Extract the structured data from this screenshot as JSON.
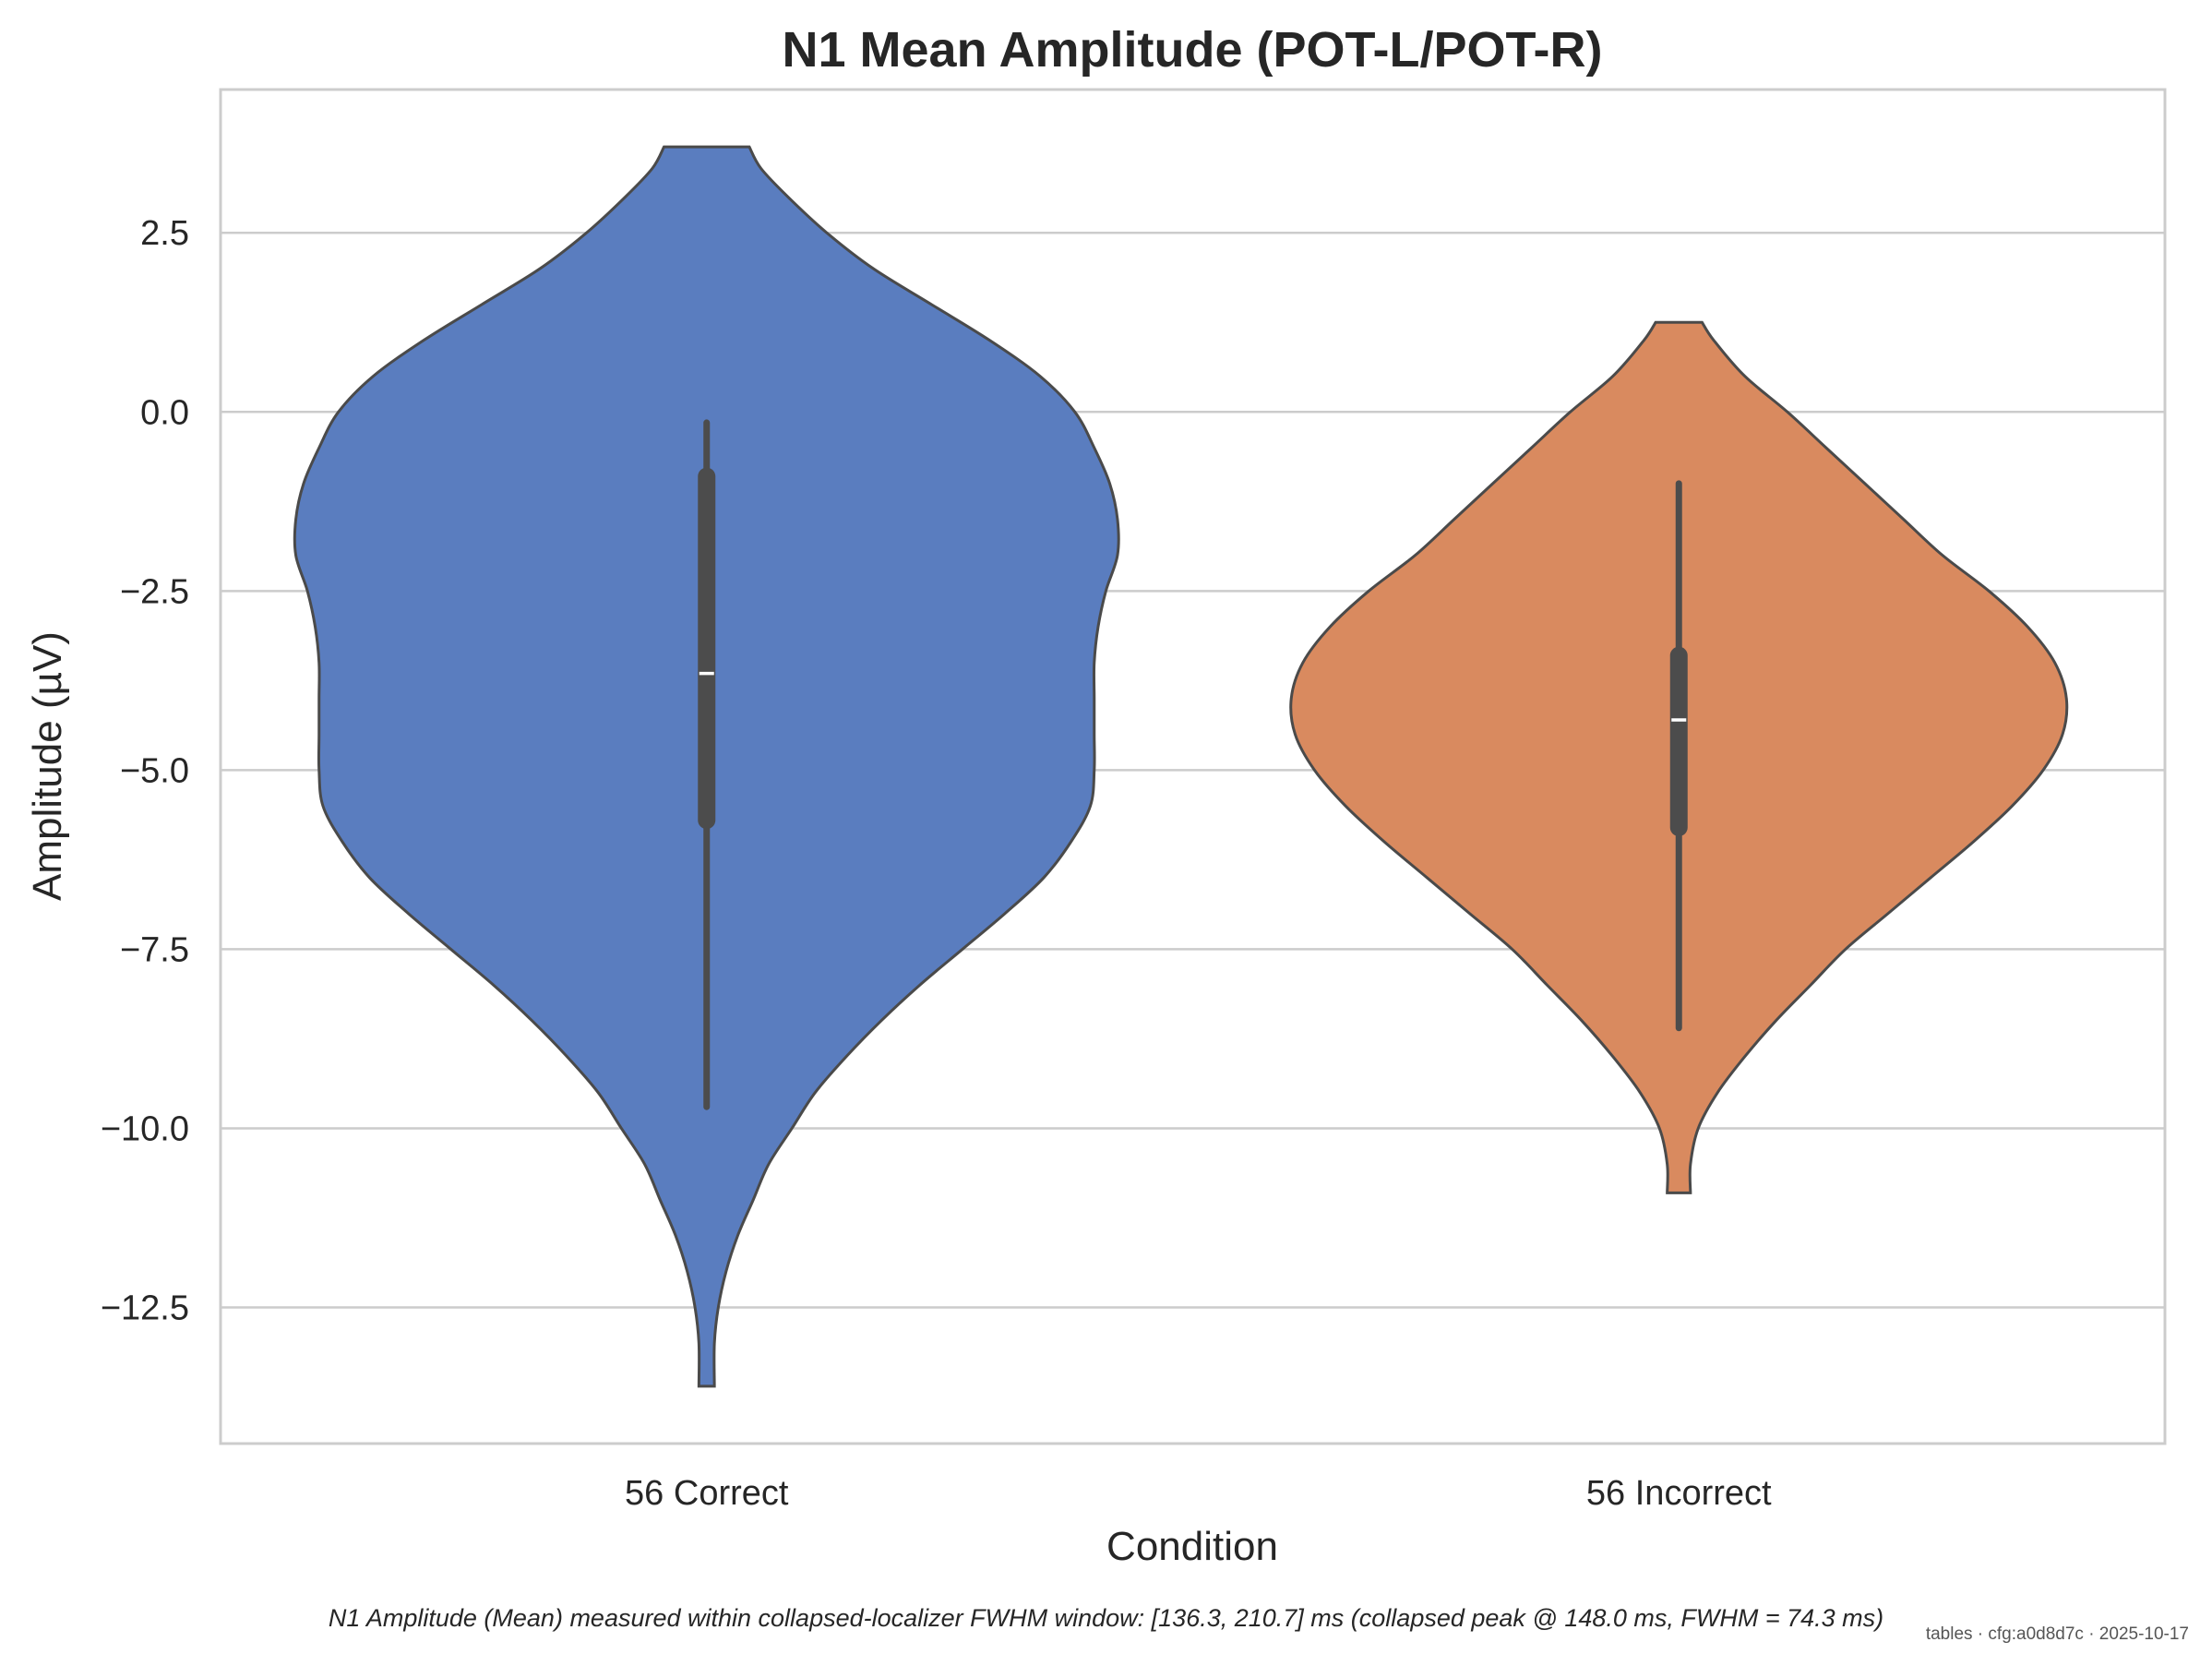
{
  "chart_data": {
    "type": "violin",
    "title": "N1 Mean Amplitude (POT-L/POT-R)",
    "xlabel": "Condition",
    "ylabel": "Amplitude (µV)",
    "ylim": [
      -14.4,
      4.5
    ],
    "yticks": [
      2.5,
      0.0,
      -2.5,
      -5.0,
      -7.5,
      -10.0,
      -12.5
    ],
    "ytick_labels": [
      "2.5",
      "0.0",
      "−2.5",
      "−5.0",
      "−7.5",
      "−10.0",
      "−12.5"
    ],
    "grid": "horizontal",
    "categories": [
      "56 Correct",
      "56 Incorrect"
    ],
    "series": [
      {
        "category": "56 Correct",
        "color": "#5a7dbf",
        "min": -9.7,
        "q1": -5.7,
        "median": -3.65,
        "q3": -0.9,
        "max": -0.15,
        "violin_range": [
          -13.6,
          3.7
        ],
        "density": [
          [
            3.7,
            0.11
          ],
          [
            3.4,
            0.14
          ],
          [
            3.0,
            0.21
          ],
          [
            2.5,
            0.31
          ],
          [
            2.0,
            0.43
          ],
          [
            1.5,
            0.58
          ],
          [
            1.0,
            0.73
          ],
          [
            0.5,
            0.86
          ],
          [
            0.0,
            0.95
          ],
          [
            -0.5,
            1.0
          ],
          [
            -1.0,
            1.04
          ],
          [
            -1.5,
            1.06
          ],
          [
            -2.0,
            1.06
          ],
          [
            -2.5,
            1.03
          ],
          [
            -3.0,
            1.01
          ],
          [
            -3.5,
            1.0
          ],
          [
            -4.0,
            1.0
          ],
          [
            -4.5,
            1.0
          ],
          [
            -5.0,
            1.0
          ],
          [
            -5.5,
            0.99
          ],
          [
            -6.0,
            0.94
          ],
          [
            -6.5,
            0.87
          ],
          [
            -7.0,
            0.77
          ],
          [
            -7.5,
            0.66
          ],
          [
            -8.0,
            0.55
          ],
          [
            -8.5,
            0.45
          ],
          [
            -9.0,
            0.36
          ],
          [
            -9.5,
            0.28
          ],
          [
            -10.0,
            0.22
          ],
          [
            -10.5,
            0.16
          ],
          [
            -11.0,
            0.12
          ],
          [
            -11.5,
            0.08
          ],
          [
            -12.0,
            0.05
          ],
          [
            -12.5,
            0.03
          ],
          [
            -13.0,
            0.02
          ],
          [
            -13.6,
            0.02
          ]
        ]
      },
      {
        "category": "56 Incorrect",
        "color": "#d98a5f",
        "min": -8.6,
        "q1": -5.8,
        "median": -4.3,
        "q3": -3.4,
        "max": -1.0,
        "violin_range": [
          -10.9,
          1.25
        ],
        "density": [
          [
            1.25,
            0.06
          ],
          [
            1.0,
            0.09
          ],
          [
            0.5,
            0.17
          ],
          [
            0.0,
            0.28
          ],
          [
            -0.5,
            0.38
          ],
          [
            -1.0,
            0.48
          ],
          [
            -1.5,
            0.58
          ],
          [
            -2.0,
            0.68
          ],
          [
            -2.5,
            0.8
          ],
          [
            -3.0,
            0.9
          ],
          [
            -3.5,
            0.97
          ],
          [
            -4.0,
            1.0
          ],
          [
            -4.5,
            0.99
          ],
          [
            -5.0,
            0.94
          ],
          [
            -5.5,
            0.86
          ],
          [
            -6.0,
            0.76
          ],
          [
            -6.5,
            0.65
          ],
          [
            -7.0,
            0.54
          ],
          [
            -7.5,
            0.43
          ],
          [
            -8.0,
            0.34
          ],
          [
            -8.5,
            0.25
          ],
          [
            -9.0,
            0.17
          ],
          [
            -9.5,
            0.1
          ],
          [
            -10.0,
            0.05
          ],
          [
            -10.5,
            0.03
          ],
          [
            -10.9,
            0.03
          ]
        ]
      }
    ]
  },
  "caption": "N1 Amplitude (Mean) measured within collapsed-localizer FWHM window: [136.3, 210.7] ms (collapsed peak @ 148.0 ms, FWHM = 74.3 ms)",
  "stamp": "tables · cfg:a0d8d7c · 2025-10-17"
}
